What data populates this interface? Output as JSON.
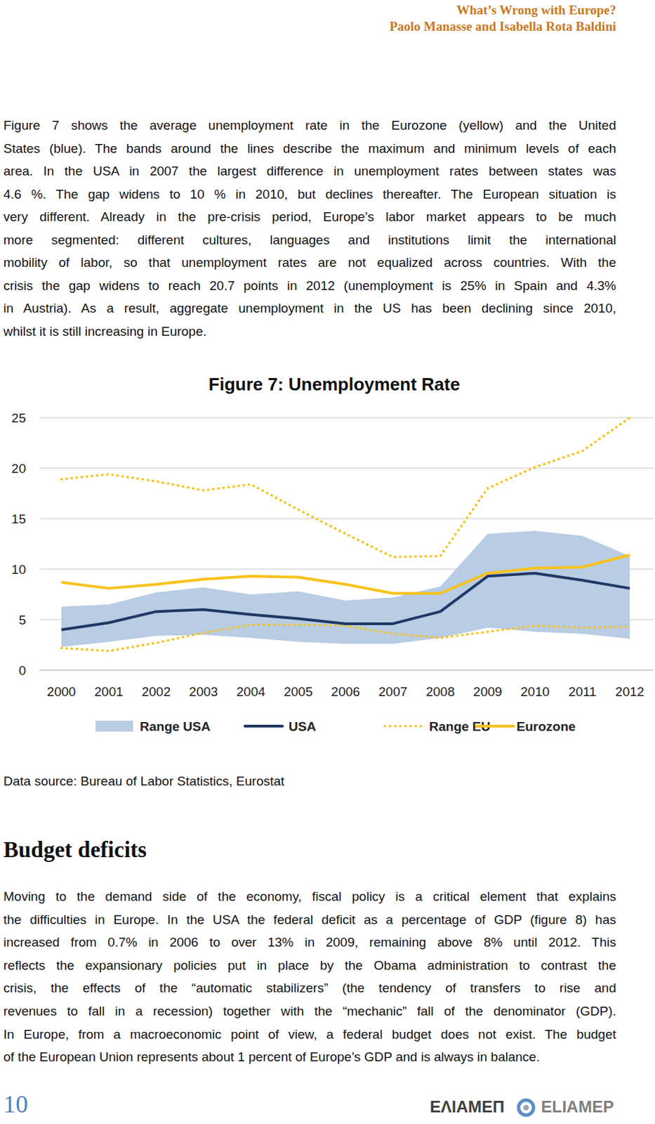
{
  "header": {
    "title": "What’s Wrong with Europe?",
    "authors": "Paolo Manasse and Isabella Rota Baldini"
  },
  "intro": {
    "lines": [
      "Figure 7 shows the average unemployment rate in the Eurozone (yellow) and the United",
      "States (blue). The bands around the lines describe the maximum and minimum levels of each",
      "area. In the USA in 2007 the largest difference in unemployment rates between states was",
      "4.6 %. The gap widens to 10 % in 2010, but declines thereafter. The European situation is",
      "very different. Already in the pre-crisis period, Europe’s labor market appears to be much",
      "more segmented: different cultures, languages and institutions limit the international",
      "mobility of labor, so that unemployment rates are not equalized across countries. With the",
      "crisis the gap widens to reach 20.7 points in 2012 (unemployment is 25% in Spain and 4.3%",
      "in Austria). As a result, aggregate unemployment in the US has been declining since 2010,",
      "whilst it is still increasing in Europe."
    ]
  },
  "chart_data": {
    "type": "line",
    "title": "Figure 7: Unemployment Rate",
    "categories": [
      "2000",
      "2001",
      "2002",
      "2003",
      "2004",
      "2005",
      "2006",
      "2007",
      "2008",
      "2009",
      "2010",
      "2011",
      "2012"
    ],
    "series": [
      {
        "name": "Range USA",
        "type": "area_range",
        "color": "#b8cce4",
        "high": [
          6.3,
          6.5,
          7.7,
          8.2,
          7.5,
          7.8,
          6.9,
          7.2,
          8.3,
          13.5,
          13.8,
          13.3,
          11.3
        ],
        "low": [
          2.3,
          2.8,
          3.4,
          3.5,
          3.2,
          2.8,
          2.6,
          2.6,
          3.2,
          4.2,
          3.8,
          3.6,
          3.1
        ]
      },
      {
        "name": "USA",
        "type": "line",
        "color": "#1f3864",
        "line_style": "solid",
        "values": [
          4.0,
          4.7,
          5.8,
          6.0,
          5.5,
          5.1,
          4.6,
          4.6,
          5.8,
          9.3,
          9.6,
          8.9,
          8.1
        ]
      },
      {
        "name": "Range EU",
        "type": "line_range",
        "color": "#f7c21a",
        "line_style": "dotted",
        "high": [
          18.9,
          19.4,
          18.7,
          17.8,
          18.4,
          15.9,
          13.5,
          11.2,
          11.3,
          18.0,
          20.1,
          21.7,
          25.0
        ],
        "low": [
          2.2,
          1.9,
          2.7,
          3.7,
          4.5,
          4.5,
          4.4,
          3.6,
          3.2,
          3.8,
          4.4,
          4.2,
          4.3
        ]
      },
      {
        "name": "Eurozone",
        "type": "line",
        "color": "#f7c21a",
        "line_style": "solid",
        "values": [
          8.7,
          8.1,
          8.5,
          9.0,
          9.3,
          9.2,
          8.5,
          7.6,
          7.6,
          9.6,
          10.1,
          10.2,
          11.4
        ]
      }
    ],
    "ylim": [
      0,
      25
    ],
    "yticks": [
      0,
      5,
      10,
      15,
      20,
      25
    ],
    "grid": true,
    "legend": "bottom"
  },
  "source": "Data source: Bureau of Labor Statistics, Eurostat",
  "section": {
    "heading": "Budget deficits",
    "lines": [
      "Moving to the demand side of the economy, fiscal policy is a  critical element that explains",
      "the difficulties in Europe. In the USA the federal deficit as a percentage of GDP (figure 8) has",
      "increased from 0.7% in 2006 to over 13% in 2009, remaining above 8% until 2012. This",
      "reflects the expansionary policies put in place by the Obama administration to contrast the",
      "crisis, the effects of the “automatic stabilizers” (the tendency of transfers to rise and",
      "revenues to fall in a recession) together with the “mechanic” fall of the denominator (GDP).",
      "In Europe, from a macroeconomic point of view, a federal budget does not exist. The budget",
      "of the European Union represents about 1 percent of Europe’s GDP and is always in balance."
    ]
  },
  "footer": {
    "page": "10",
    "logo_greek": "ΕΛΙΑΜΕΠ",
    "logo_latin": "ELIAMEP"
  }
}
